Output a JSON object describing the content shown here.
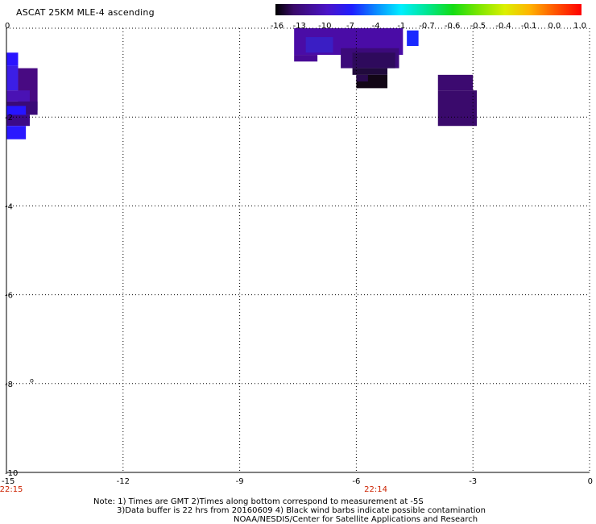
{
  "title": "ASCAT 25KM MLE-4 ascending",
  "colorbar": {
    "labels": [
      "-16",
      "-13",
      "-10",
      "-7",
      "-4",
      "-1",
      "-0.7",
      "-0.6",
      "-0.5",
      "-0.4",
      "-0.1",
      "0.0",
      "1.0"
    ]
  },
  "chart_data": {
    "type": "heatmap",
    "title": "ASCAT 25KM MLE-4 ascending",
    "xlim": [
      -15,
      0
    ],
    "ylim": [
      -10,
      0
    ],
    "x_ticks": [
      "-15",
      "-12",
      "-9",
      "-6",
      "-3",
      "0"
    ],
    "y_ticks": [
      "0",
      "-2",
      "-4",
      "-6",
      "-8",
      "-10"
    ],
    "grid": true,
    "time_labels": [
      {
        "x": -15,
        "text": "22:15"
      },
      {
        "x": -5.5,
        "text": "22:14"
      }
    ],
    "cells": [
      {
        "lon0": -15.0,
        "lat0": -0.55,
        "lon1": -14.7,
        "lat1": -0.85,
        "color": "#2a14ff"
      },
      {
        "lon0": -15.0,
        "lat0": -0.85,
        "lon1": -14.7,
        "lat1": -1.4,
        "color": "#3c1ee6"
      },
      {
        "lon0": -14.7,
        "lat0": -0.9,
        "lon1": -14.2,
        "lat1": -1.85,
        "color": "#480a82"
      },
      {
        "lon0": -15.0,
        "lat0": -1.4,
        "lon1": -14.4,
        "lat1": -1.65,
        "color": "#4a12b4"
      },
      {
        "lon0": -15.0,
        "lat0": -1.65,
        "lon1": -14.2,
        "lat1": -1.95,
        "color": "#3a0a78"
      },
      {
        "lon0": -15.0,
        "lat0": -1.75,
        "lon1": -14.5,
        "lat1": -2.0,
        "color": "#2614ff"
      },
      {
        "lon0": -15.0,
        "lat0": -1.95,
        "lon1": -14.4,
        "lat1": -2.2,
        "color": "#3c0a88"
      },
      {
        "lon0": -15.0,
        "lat0": -2.2,
        "lon1": -14.5,
        "lat1": -2.5,
        "color": "#2a18ff"
      },
      {
        "lon0": -7.6,
        "lat0": 0.0,
        "lon1": -4.8,
        "lat1": -0.6,
        "color": "#4a0ca6"
      },
      {
        "lon0": -7.3,
        "lat0": -0.2,
        "lon1": -6.6,
        "lat1": -0.55,
        "color": "#3a1ec4"
      },
      {
        "lon0": -4.7,
        "lat0": -0.05,
        "lon1": -4.4,
        "lat1": -0.4,
        "color": "#1a28ff"
      },
      {
        "lon0": -7.6,
        "lat0": -0.6,
        "lon1": -7.0,
        "lat1": -0.75,
        "color": "#480a96"
      },
      {
        "lon0": -6.4,
        "lat0": -0.45,
        "lon1": -4.9,
        "lat1": -0.9,
        "color": "#3c0a7a"
      },
      {
        "lon0": -6.1,
        "lat0": -0.55,
        "lon1": -5.0,
        "lat1": -0.9,
        "color": "#2e0a5c"
      },
      {
        "lon0": -6.1,
        "lat0": -0.9,
        "lon1": -5.2,
        "lat1": -1.05,
        "color": "#200a3c"
      },
      {
        "lon0": -6.0,
        "lat0": -1.05,
        "lon1": -5.2,
        "lat1": -1.35,
        "color": "#120616"
      },
      {
        "lon0": -6.0,
        "lat0": -1.05,
        "lon1": -5.7,
        "lat1": -1.2,
        "color": "#2a0a50"
      },
      {
        "lon0": -3.9,
        "lat0": -1.05,
        "lon1": -3.0,
        "lat1": -1.4,
        "color": "#3c0a70"
      },
      {
        "lon0": -3.9,
        "lat0": -1.4,
        "lon1": -2.9,
        "lat1": -2.2,
        "color": "#3a0a6c"
      }
    ]
  },
  "marker": {
    "text": "o"
  },
  "notes": [
    "Note: 1) Times are GMT 2)Times along bottom correspond to measurement at -5S",
    "3)Data buffer is 22 hrs from 20160609 4) Black wind barbs indicate possible contamination",
    "NOAA/NESDIS/Center for Satellite Applications and Research"
  ]
}
